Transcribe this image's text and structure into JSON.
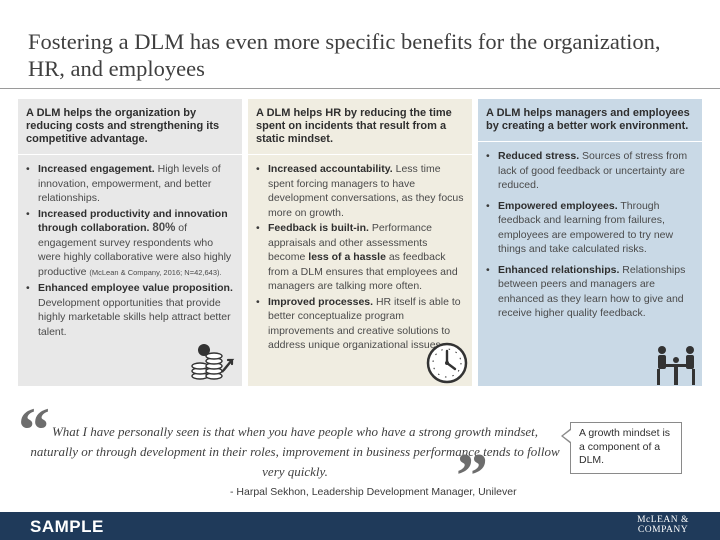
{
  "title": "Fostering a DLM has even more specific benefits for the organization, HR, and employees",
  "columns": [
    {
      "heading": "A DLM helps the organization by reducing costs and strengthening its competitive advantage.",
      "items": [
        {
          "bold": "Increased engagement.",
          "text": " High levels of innovation, empowerment, and better relationships."
        },
        {
          "bold": "Increased productivity and innovation through collaboration.",
          "stat": "80%",
          "text": " of engagement survey respondents who were highly collaborative were also highly productive ",
          "source": "(McLean & Company, 2016; N=42,643)."
        },
        {
          "bold": "Enhanced employee value proposition.",
          "text": " Development opportunities that provide highly marketable skills help attract better talent."
        }
      ]
    },
    {
      "heading": "A DLM helps HR by reducing the time spent on incidents that result from a static mindset.",
      "items": [
        {
          "bold": "Increased accountability.",
          "text": " Less time spent forcing managers to have development conversations, as they focus more on growth."
        },
        {
          "bold": "Feedback is built-in.",
          "text_a": " Performance appraisals and other assessments become ",
          "bold_mid": "less of a hassle",
          "text_b": " as feedback from a DLM ensures that employees and managers are talking more often."
        },
        {
          "bold": "Improved processes.",
          "text": " HR itself is able to better conceptualize program improvements and creative solutions to address unique organizational issues."
        }
      ]
    },
    {
      "heading": "A DLM helps managers and employees by creating a better work environment.",
      "items": [
        {
          "bold": "Reduced stress.",
          "text": " Sources of stress from lack of good feedback or uncertainty are reduced."
        },
        {
          "bold": "Empowered employees.",
          "text": " Through feedback and learning from failures, employees are empowered to try new things and take calculated risks."
        },
        {
          "bold": "Enhanced relationships.",
          "text": " Relationships between peers and managers are enhanced as they learn how to give and receive higher quality feedback."
        }
      ]
    }
  ],
  "quote": {
    "open_mark": "“",
    "close_mark": "”",
    "text": "What I have personally seen is that when you have people who have a strong growth mindset, naturally or through development in their roles, improvement in business performance tends to follow very quickly.",
    "attribution": "- Harpal Sekhon, Leadership Development Manager, Unilever"
  },
  "callout": "A growth mindset is a component of a DLM.",
  "footer": {
    "sample": "SAMPLE",
    "logo_line1": "McLEAN &",
    "logo_line2": "COMPANY"
  },
  "icons": {
    "col1": "coins-growth-icon",
    "col2": "clock-icon",
    "col3": "meeting-people-icon"
  },
  "colors": {
    "col1_bg": "#e8e8e8",
    "col2_bg": "#f0ede1",
    "col3_bg": "#c9d9e6",
    "footer_bg": "#1f3a5a"
  }
}
